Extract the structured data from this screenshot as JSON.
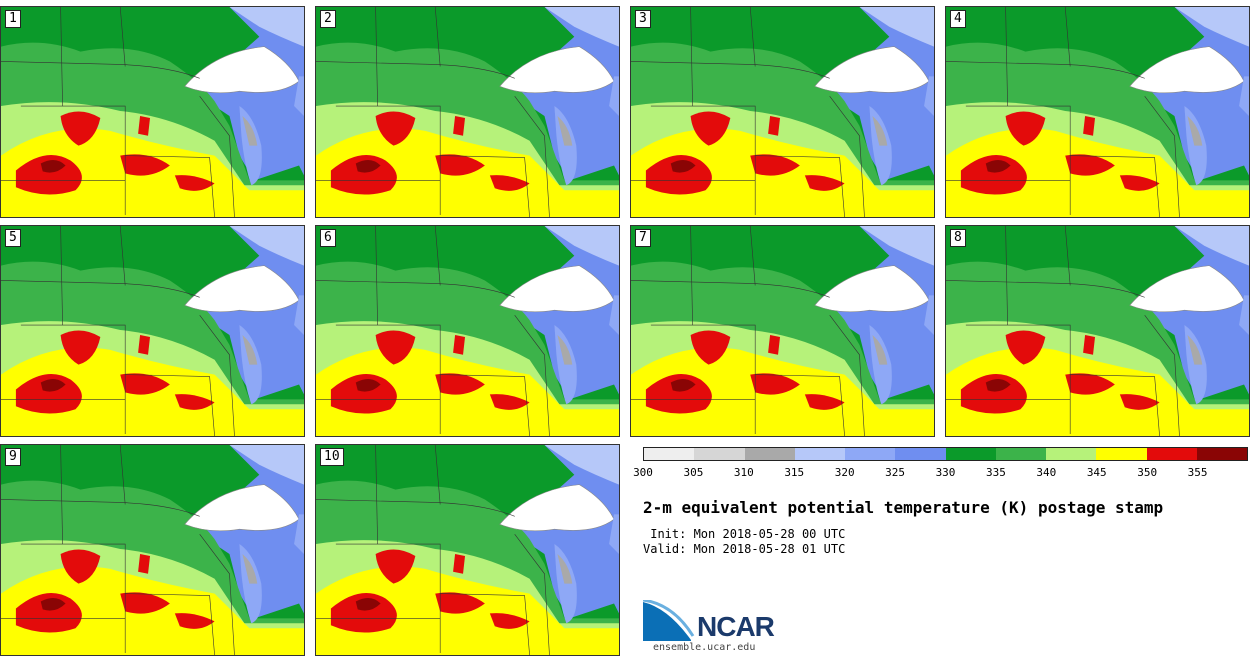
{
  "panels": [
    {
      "label": "1"
    },
    {
      "label": "2"
    },
    {
      "label": "3"
    },
    {
      "label": "4"
    },
    {
      "label": "5"
    },
    {
      "label": "6"
    },
    {
      "label": "7"
    },
    {
      "label": "8"
    },
    {
      "label": "9"
    },
    {
      "label": "10"
    }
  ],
  "colorbar": {
    "colors": [
      "#eeeeee",
      "#d6d6d6",
      "#a9a9a9",
      "#b6c8f9",
      "#8ea8f6",
      "#6f8ef0",
      "#0b9a2a",
      "#3cb34a",
      "#b6f27a",
      "#ffff00",
      "#e30b0b",
      "#8a0505"
    ],
    "tick_labels": [
      "300",
      "305",
      "310",
      "315",
      "320",
      "325",
      "330",
      "335",
      "340",
      "345",
      "350",
      "355"
    ]
  },
  "title": "2-m equivalent potential temperature (K) postage stamp",
  "init_line": " Init: Mon 2018-05-28 00 UTC",
  "valid_line": "Valid: Mon 2018-05-28 01 UTC",
  "logo": {
    "name": "NCAR",
    "url": "ensemble.ucar.edu",
    "icon": "ncar-logo-icon"
  }
}
